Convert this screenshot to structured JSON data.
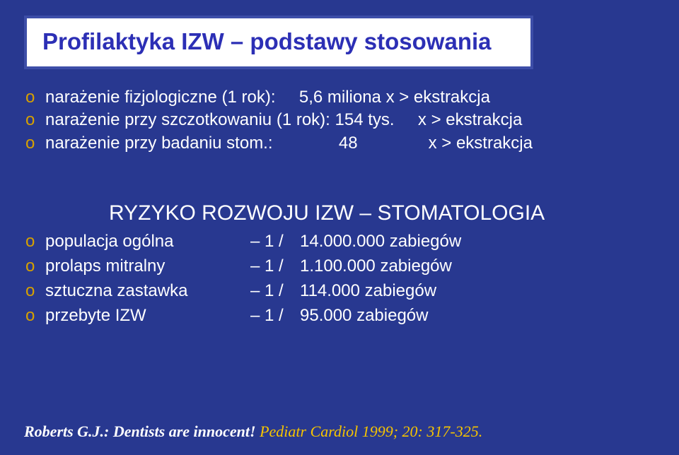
{
  "colors": {
    "background": "#283890",
    "title_box_bg": "#ffffff",
    "title_box_border": "#3d4ea8",
    "title_text": "#2c2fb5",
    "bullet": "#d6a000",
    "body_text": "#ffffff",
    "subtitle": "#ffffff",
    "citation_author": "#ffffff",
    "citation_ref": "#f6c400"
  },
  "title": "Profilaktyka IZW – podstawy stosowania",
  "exposure": [
    {
      "label": "narażenie fizjologiczne (1 rok):",
      "value": "5,6 miliona",
      "tail": " x > ekstrakcja"
    },
    {
      "label": "narażenie przy szczotkowaniu (1 rok):",
      "value": "154 tys.",
      "tail": "     x > ekstrakcja"
    },
    {
      "label": "narażenie przy badaniu stom.:",
      "value": "48",
      "tail": "               x > ekstrakcja"
    }
  ],
  "subtitle": "RYZYKO ROZWOJU IZW – STOMATOLOGIA",
  "risk": [
    {
      "label": "populacja ogólna",
      "dash": "– 1 / ",
      "value": "14.000.000 zabiegów"
    },
    {
      "label": "prolaps mitralny",
      "dash": "– 1 /  ",
      "value": "1.100.000 zabiegów"
    },
    {
      "label": "sztuczna zastawka",
      "dash": "– 1 /     ",
      "value": "114.000 zabiegów"
    },
    {
      "label": "przebyte IZW",
      "dash": "– 1 /       ",
      "value": "95.000 zabiegów"
    }
  ],
  "citation": {
    "author": "Roberts G.J.: Dentists are innocent! ",
    "ref": "Pediatr Cardiol 1999; 20: 317-325."
  }
}
